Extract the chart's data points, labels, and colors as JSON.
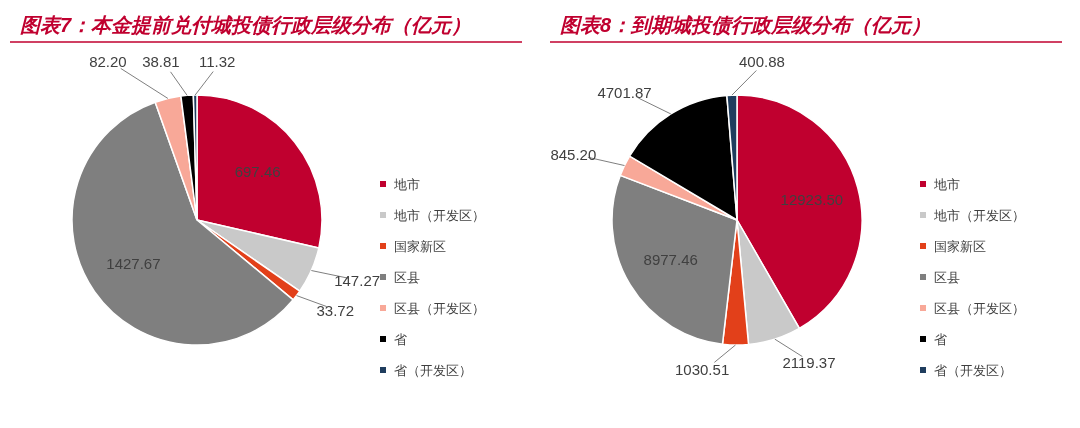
{
  "chart_data": [
    {
      "type": "pie",
      "title": "图表7：本金提前兑付城投债行政层级分布（亿元）",
      "categories": [
        "地市",
        "地市（开发区）",
        "国家新区",
        "区县",
        "区县（开发区）",
        "省",
        "省（开发区）"
      ],
      "values": [
        697.46,
        147.27,
        33.72,
        1427.67,
        82.2,
        38.81,
        11.32
      ],
      "value_labels": [
        "697.46",
        "147.27",
        "33.72",
        "1427.67",
        "82.20",
        "38.81",
        "11.32"
      ],
      "colors": [
        "#c0002f",
        "#c9c9c9",
        "#e2401a",
        "#7f7f7f",
        "#f8a898",
        "#000000",
        "#1f3d5e"
      ],
      "legend": "right"
    },
    {
      "type": "pie",
      "title": "图表8：到期城投债行政层级分布（亿元）",
      "categories": [
        "地市",
        "地市（开发区）",
        "国家新区",
        "区县",
        "区县（开发区）",
        "省",
        "省（开发区）"
      ],
      "values": [
        12923.5,
        2119.37,
        1030.51,
        8977.46,
        845.2,
        4701.87,
        400.88
      ],
      "value_labels": [
        "12923.50",
        "2119.37",
        "1030.51",
        "8977.46",
        "845.20",
        "4701.87",
        "400.88"
      ],
      "colors": [
        "#c0002f",
        "#c9c9c9",
        "#e2401a",
        "#7f7f7f",
        "#f8a898",
        "#000000",
        "#1f3d5e"
      ],
      "legend": "right"
    }
  ]
}
